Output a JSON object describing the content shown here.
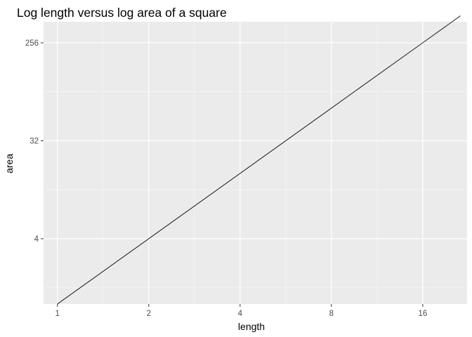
{
  "chart_data": {
    "type": "line",
    "title": "Log length versus log area of a square",
    "xlabel": "length",
    "ylabel": "area",
    "x_scale": "log2",
    "y_scale": "log2",
    "xlim": [
      0.9,
      22.4
    ],
    "ylim": [
      1,
      400
    ],
    "x_ticks": [
      1,
      2,
      4,
      8,
      16
    ],
    "x_tick_labels": [
      "1",
      "2",
      "4",
      "8",
      "16"
    ],
    "y_ticks": [
      4,
      32,
      256
    ],
    "y_tick_labels": [
      "4",
      "32",
      "256"
    ],
    "grid": true,
    "legend": "none",
    "series": [
      {
        "x": [
          1,
          2,
          4,
          8,
          16,
          21.3
        ],
        "y": [
          1,
          4,
          16,
          64,
          256,
          453.7
        ],
        "color": "#000000"
      }
    ]
  }
}
